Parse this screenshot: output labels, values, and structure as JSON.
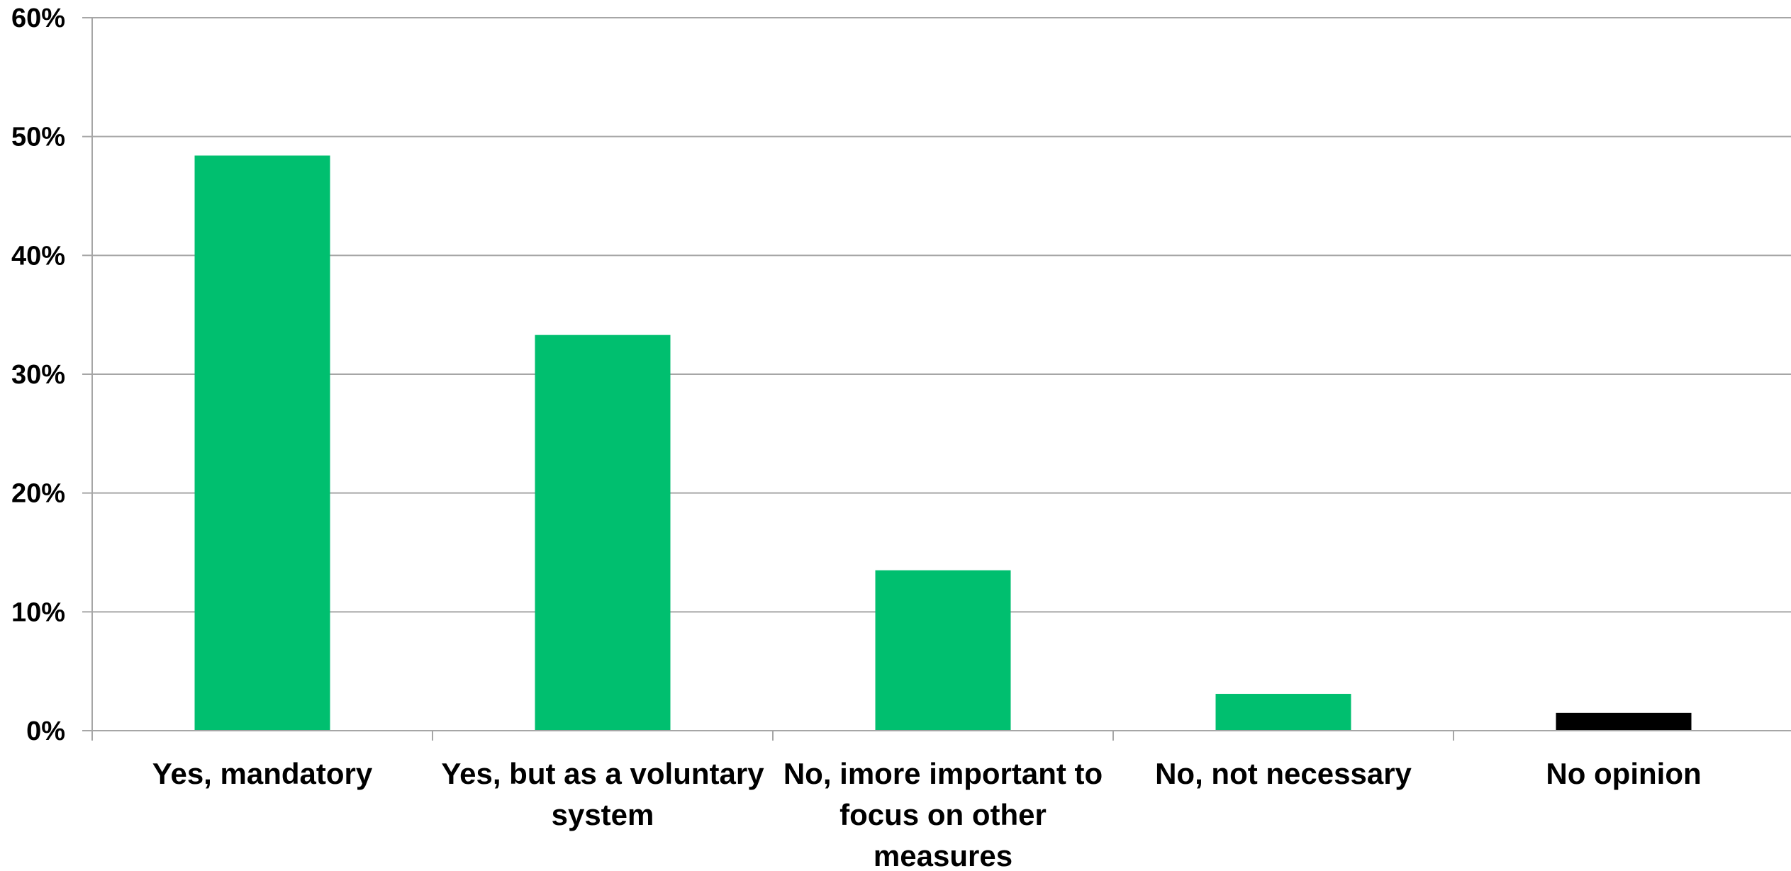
{
  "chart_data": {
    "type": "bar",
    "categories": [
      [
        "Yes, mandatory"
      ],
      [
        "Yes, but as a voluntary",
        "system"
      ],
      [
        "No, imore important to",
        "focus on other",
        "measures"
      ],
      [
        "No, not necessary"
      ],
      [
        "No opinion"
      ]
    ],
    "values": [
      48.4,
      33.3,
      13.5,
      3.1,
      1.5
    ],
    "bar_colors": [
      "#00BF6F",
      "#00BF6F",
      "#00BF6F",
      "#00BF6F",
      "#000000"
    ],
    "ylim": [
      0,
      60
    ],
    "yticks": [
      0,
      10,
      20,
      30,
      40,
      50,
      60
    ],
    "ytick_format": "percent",
    "grid": true
  }
}
